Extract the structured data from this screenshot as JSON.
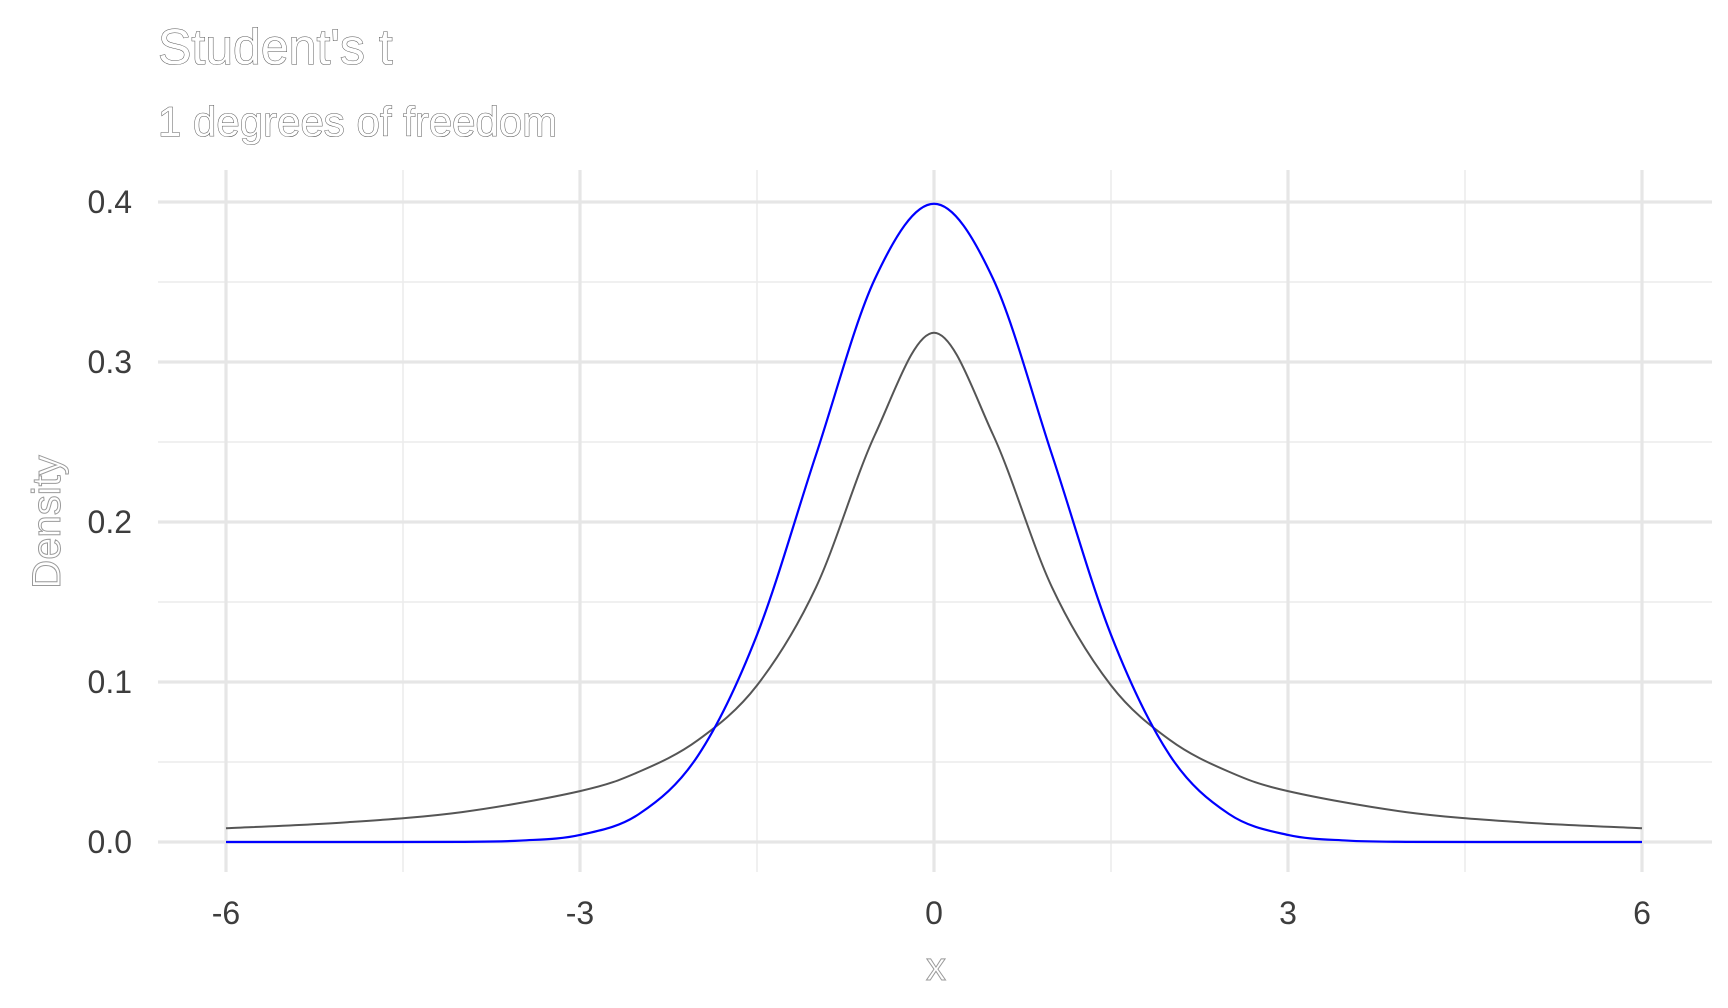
{
  "chart_data": {
    "type": "line",
    "title": "Student's t",
    "subtitle": "1 degrees of freedom",
    "xlabel": "x",
    "ylabel": "Density",
    "xlim": [
      -6,
      6
    ],
    "ylim": [
      0,
      0.4
    ],
    "x_ticks": [
      -6,
      -3,
      0,
      3,
      6
    ],
    "x_tick_labels": [
      "-6",
      "-3",
      "0",
      "3",
      "6"
    ],
    "y_ticks": [
      0,
      0.1,
      0.2,
      0.3,
      0.4
    ],
    "y_tick_labels": [
      "0.0",
      "0.1",
      "0.2",
      "0.3",
      "0.4"
    ],
    "grid": true,
    "legend": "none",
    "series": [
      {
        "color": "#555555",
        "x": [
          -6,
          -5,
          -4,
          -3,
          -2.5,
          -2,
          -1.5,
          -1,
          -0.5,
          0,
          0.5,
          1,
          1.5,
          2,
          2.5,
          3,
          4,
          5,
          6
        ],
        "values": [
          0.0086,
          0.0122,
          0.0187,
          0.0318,
          0.0439,
          0.0637,
          0.0979,
          0.1592,
          0.2546,
          0.3183,
          0.2546,
          0.1592,
          0.0979,
          0.0637,
          0.0439,
          0.0318,
          0.0187,
          0.0122,
          0.0086
        ]
      },
      {
        "color": "#0000ff",
        "x": [
          -6,
          -5,
          -4,
          -3.5,
          -3,
          -2.5,
          -2,
          -1.5,
          -1,
          -0.5,
          0,
          0.5,
          1,
          1.5,
          2,
          2.5,
          3,
          3.5,
          4,
          5,
          6
        ],
        "values": [
          0.0,
          0.0,
          0.0001,
          0.0009,
          0.0044,
          0.0175,
          0.054,
          0.1295,
          0.242,
          0.3521,
          0.3989,
          0.3521,
          0.242,
          0.1295,
          0.054,
          0.0175,
          0.0044,
          0.0009,
          0.0001,
          0.0,
          0.0
        ]
      }
    ]
  }
}
